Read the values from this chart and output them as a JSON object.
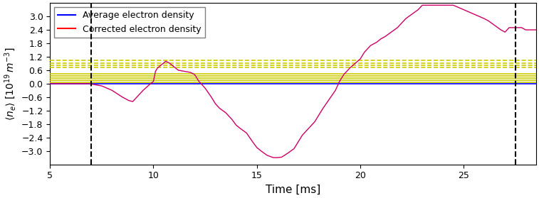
{
  "xlim": [
    5,
    28.5
  ],
  "ylim": [
    -3.6,
    3.6
  ],
  "yticks": [
    -3.0,
    -2.4,
    -1.8,
    -1.2,
    -0.6,
    0.0,
    0.6,
    1.2,
    1.8,
    2.4,
    3.0
  ],
  "xticks": [
    5,
    10,
    15,
    20,
    25
  ],
  "xlabel": "Time [ms]",
  "ylabel": "$\\langle n_e \\rangle$ $[10^{19}\\,m^{-3}]$",
  "vline1": 7.0,
  "vline2": 27.5,
  "avg_density_value": 0.0,
  "yellow_solid_lines": [
    0.05,
    0.15,
    0.25,
    0.35,
    0.45
  ],
  "yellow_dashed_lines": [
    0.72,
    0.82,
    0.92,
    1.05
  ],
  "legend_labels": [
    "Average electron density",
    "Corrected electron density"
  ],
  "blue_color": "#0000ff",
  "red_color": "#ff0000",
  "magenta_color": "#cc0066",
  "yellow_color": "#cccc00",
  "background": "#ffffff",
  "corrected_x": [
    5.0,
    7.0,
    7.0,
    7.5,
    8.0,
    8.5,
    8.8,
    9.0,
    9.2,
    9.5,
    9.8,
    10.0,
    10.1,
    10.2,
    10.4,
    10.6,
    10.8,
    11.0,
    11.2,
    11.5,
    11.8,
    12.0,
    12.2,
    12.5,
    12.8,
    13.0,
    13.2,
    13.5,
    13.8,
    14.0,
    14.2,
    14.5,
    14.8,
    15.0,
    15.2,
    15.5,
    15.8,
    16.0,
    16.2,
    16.5,
    16.8,
    17.0,
    17.2,
    17.5,
    17.8,
    18.0,
    18.2,
    18.5,
    18.8,
    19.0,
    19.2,
    19.5,
    20.0,
    20.2,
    20.5,
    20.8,
    21.0,
    21.2,
    21.5,
    21.8,
    22.0,
    22.2,
    22.5,
    22.8,
    23.0,
    23.5,
    24.0,
    24.5,
    25.0,
    25.5,
    26.0,
    26.2,
    26.5,
    26.8,
    27.0,
    27.2,
    27.5,
    27.8,
    28.0,
    28.5
  ],
  "corrected_y": [
    0.0,
    0.0,
    -0.02,
    -0.1,
    -0.3,
    -0.6,
    -0.75,
    -0.8,
    -0.6,
    -0.3,
    -0.05,
    0.1,
    0.55,
    0.7,
    0.85,
    1.0,
    0.9,
    0.75,
    0.6,
    0.55,
    0.5,
    0.4,
    0.1,
    -0.2,
    -0.6,
    -0.9,
    -1.1,
    -1.3,
    -1.6,
    -1.85,
    -2.0,
    -2.2,
    -2.6,
    -2.85,
    -3.0,
    -3.2,
    -3.3,
    -3.3,
    -3.28,
    -3.1,
    -2.9,
    -2.6,
    -2.3,
    -2.0,
    -1.7,
    -1.4,
    -1.1,
    -0.7,
    -0.3,
    0.1,
    0.4,
    0.7,
    1.1,
    1.4,
    1.7,
    1.85,
    2.0,
    2.1,
    2.3,
    2.5,
    2.7,
    2.9,
    3.1,
    3.3,
    3.5,
    3.5,
    3.5,
    3.5,
    3.3,
    3.1,
    2.9,
    2.8,
    2.6,
    2.4,
    2.3,
    2.5,
    2.5,
    2.5,
    2.4,
    2.4
  ]
}
